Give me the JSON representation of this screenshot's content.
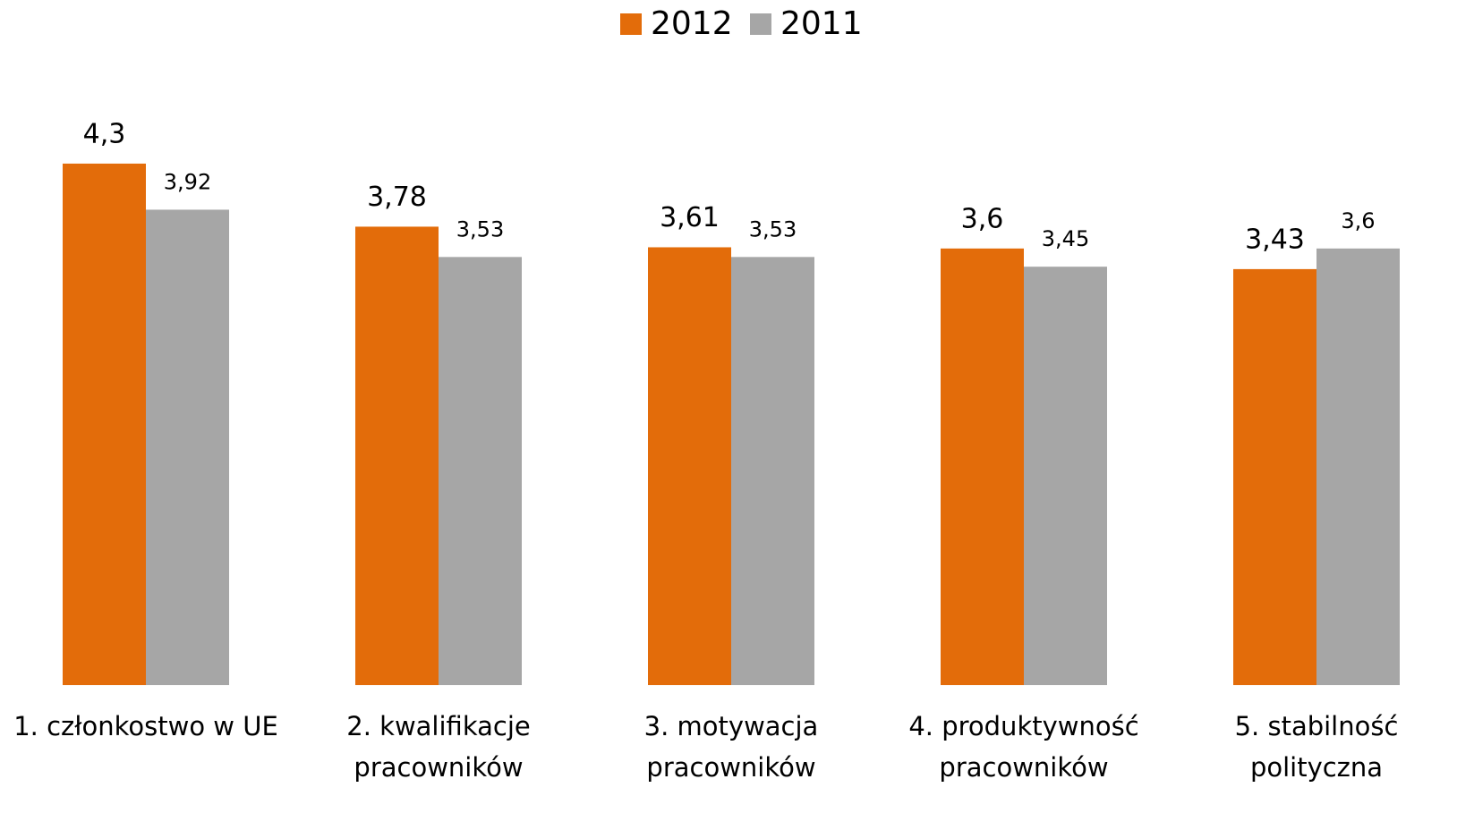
{
  "chart_data": {
    "type": "bar",
    "categories": [
      "1. członkostwo w UE",
      "2. kwalifikacje pracowników",
      "3. motywacja pracowników",
      "4. produktywność pracowników",
      "5. stabilność polityczna"
    ],
    "series": [
      {
        "name": "2012",
        "color": "#e36c0a",
        "values": [
          4.3,
          3.78,
          3.61,
          3.6,
          3.43
        ],
        "value_labels": [
          "4,3",
          "3,78",
          "3,61",
          "3,6",
          "3,43"
        ]
      },
      {
        "name": "2011",
        "color": "#a6a6a6",
        "values": [
          3.92,
          3.53,
          3.53,
          3.45,
          3.6
        ],
        "value_labels": [
          "3,92",
          "3,53",
          "3,53",
          "3,45",
          "3,6"
        ]
      }
    ],
    "ylim": [
      0,
      5
    ],
    "legend": "top"
  }
}
